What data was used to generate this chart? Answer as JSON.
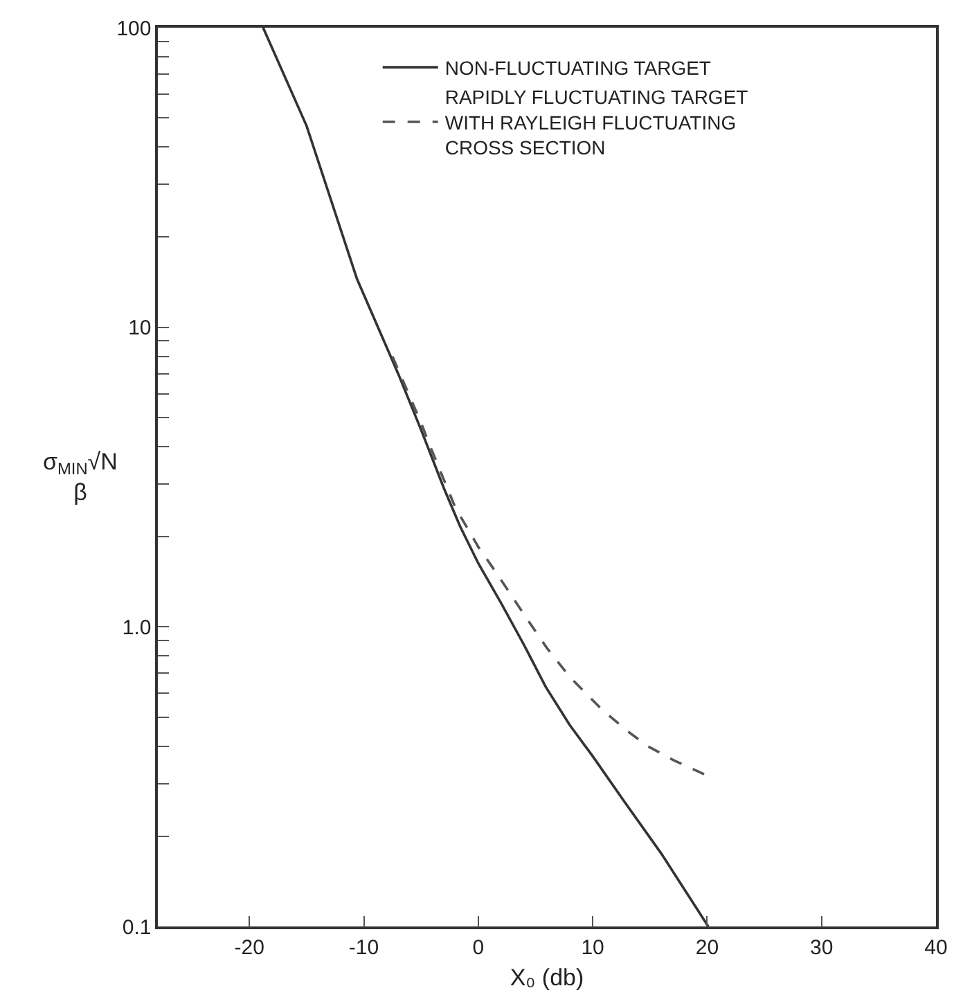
{
  "chart_data": {
    "type": "line",
    "xlabel": "X₀ (db)",
    "ylabel": "σ$_{MIN}$√N\nβ",
    "log": "y",
    "legend": "top right",
    "marker": "none",
    "xlim": [
      -28,
      40
    ],
    "xticks": [
      -20,
      -10,
      0,
      10,
      20,
      30,
      40
    ],
    "ylim": [
      0.1,
      100
    ],
    "yticks": [
      {
        "value": 0.1,
        "label": "0.1"
      },
      {
        "value": 0.2,
        "label": null
      },
      {
        "value": 0.3,
        "label": null
      },
      {
        "value": 0.4,
        "label": null
      },
      {
        "value": 0.5,
        "label": null
      },
      {
        "value": 0.6,
        "label": null
      },
      {
        "value": 0.7,
        "label": null
      },
      {
        "value": 0.8,
        "label": null
      },
      {
        "value": 0.9,
        "label": null
      },
      {
        "value": 1,
        "label": "1.0"
      },
      {
        "value": 2,
        "label": null
      },
      {
        "value": 3,
        "label": null
      },
      {
        "value": 4,
        "label": null
      },
      {
        "value": 5,
        "label": null
      },
      {
        "value": 6,
        "label": null
      },
      {
        "value": 7,
        "label": null
      },
      {
        "value": 8,
        "label": null
      },
      {
        "value": 9,
        "label": null
      },
      {
        "value": 10,
        "label": "10"
      },
      {
        "value": 20,
        "label": null
      },
      {
        "value": 30,
        "label": null
      },
      {
        "value": 40,
        "label": null
      },
      {
        "value": 50,
        "label": null
      },
      {
        "value": 60,
        "label": null
      },
      {
        "value": 70,
        "label": null
      },
      {
        "value": 80,
        "label": null
      },
      {
        "value": 90,
        "label": null
      },
      {
        "value": 100,
        "label": "100"
      }
    ],
    "series": [
      {
        "name": "NON-FLUCTUATING TARGET",
        "color": "#333333",
        "line_style": "solid",
        "x": [
          -18.8,
          -15,
          -10.6,
          -7,
          -5,
          -3,
          -1.6,
          0,
          2,
          4,
          5.9,
          8,
          10,
          12.8,
          16,
          20.1
        ],
        "values": [
          100,
          47,
          14.5,
          7.0,
          4.55,
          2.9,
          2.17,
          1.63,
          1.2,
          0.87,
          0.63,
          0.47,
          0.37,
          0.26,
          0.175,
          0.1
        ]
      },
      {
        "name": "RAPIDLY FLUCTUATING TARGET\nWITH RAYLEIGH FLUCTUATING\nCROSS SECTION",
        "color": "#555555",
        "line_style": "dashed",
        "x": [
          -7.5,
          -5,
          -4.2,
          -2,
          0,
          1.5,
          4,
          6,
          8,
          10.8,
          13,
          14.8,
          17,
          19.9
        ],
        "values": [
          8,
          4.8,
          4.0,
          2.5,
          1.85,
          1.53,
          1.1,
          0.85,
          0.68,
          0.53,
          0.45,
          0.4,
          0.36,
          0.32
        ]
      }
    ]
  }
}
